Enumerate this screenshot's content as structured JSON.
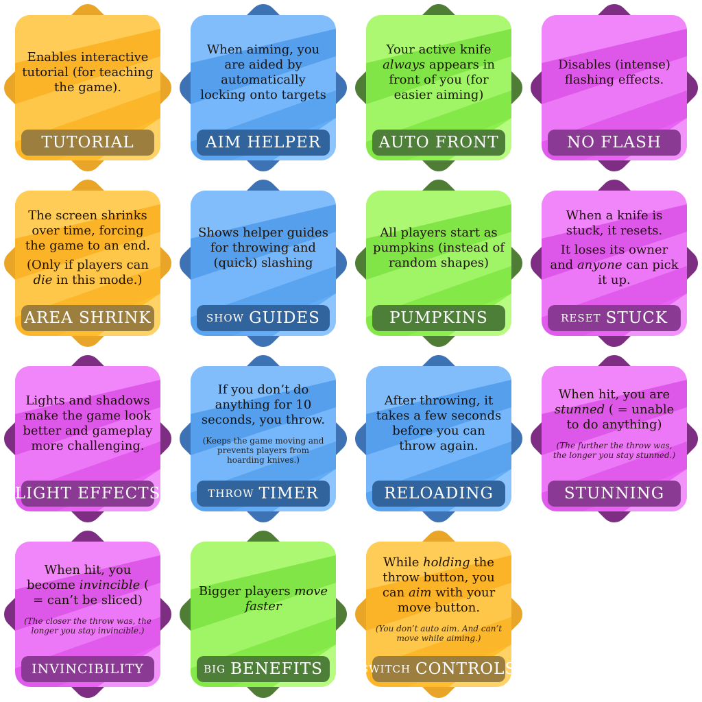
{
  "colors": {
    "orange": {
      "face": "#ffbd2e",
      "light": "#ffd97a",
      "dark": "#f3a21a",
      "diamond": "#e9a528",
      "label": "#9c7e3e"
    },
    "blue": {
      "face": "#62acf7",
      "light": "#9bccff",
      "dark": "#3f86d8",
      "diamond": "#3d72b4",
      "label": "#31649d"
    },
    "green": {
      "face": "#8ef04f",
      "light": "#c4ff92",
      "dark": "#6cd138",
      "diamond": "#4f7d36",
      "label": "#4d7f38"
    },
    "purple": {
      "face": "#e862f3",
      "light": "#f5a4ff",
      "dark": "#c947d7",
      "diamond": "#7d2e83",
      "label": "#8b3a93"
    }
  },
  "cards": [
    {
      "id": "tutorial",
      "color": "orange",
      "prefix": "",
      "title": "Tutorial",
      "paragraphs": [
        [
          {
            "t": "Enables interactive tutorial (for teaching the game)."
          }
        ]
      ],
      "note": ""
    },
    {
      "id": "aim-helper",
      "color": "blue",
      "prefix": "",
      "title": "Aim Helper",
      "paragraphs": [
        [
          {
            "t": "When aiming, you are aided by automatically locking onto targets"
          }
        ]
      ],
      "note": ""
    },
    {
      "id": "auto-front",
      "color": "green",
      "prefix": "",
      "title": "Auto Front",
      "paragraphs": [
        [
          {
            "t": "Your active knife "
          },
          {
            "t": "always",
            "i": true
          },
          {
            "t": " appears in front of you (for easier aiming)"
          }
        ]
      ],
      "note": ""
    },
    {
      "id": "no-flash",
      "color": "purple",
      "prefix": "",
      "title": "No Flash",
      "paragraphs": [
        [
          {
            "t": "Disables (intense) flashing effects."
          }
        ]
      ],
      "note": ""
    },
    {
      "id": "area-shrink",
      "color": "orange",
      "prefix": "",
      "title": "Area Shrink",
      "paragraphs": [
        [
          {
            "t": "The screen shrinks over time, forcing the game to an end."
          }
        ],
        [
          {
            "t": "(Only if players can "
          },
          {
            "t": "die",
            "i": true
          },
          {
            "t": " in this mode.)"
          }
        ]
      ],
      "note": ""
    },
    {
      "id": "show-guides",
      "color": "blue",
      "prefix": "show",
      "title": "Guides",
      "paragraphs": [
        [
          {
            "t": "Shows helper guides for throwing and (quick) slashing"
          }
        ]
      ],
      "note": ""
    },
    {
      "id": "pumpkins",
      "color": "green",
      "prefix": "",
      "title": "Pumpkins",
      "paragraphs": [
        [
          {
            "t": "All players start as pumpkins (instead of random shapes)"
          }
        ]
      ],
      "note": ""
    },
    {
      "id": "reset-stuck",
      "color": "purple",
      "prefix": "reset",
      "title": "Stuck",
      "paragraphs": [
        [
          {
            "t": "When a knife is stuck, it resets."
          }
        ],
        [
          {
            "t": "It loses its owner and "
          },
          {
            "t": "anyone",
            "i": true
          },
          {
            "t": " can pick it up."
          }
        ]
      ],
      "note": ""
    },
    {
      "id": "light-effects",
      "color": "purple",
      "prefix": "",
      "title": "Light Effects",
      "paragraphs": [
        [
          {
            "t": "Lights and shadows make the game look better and gameplay more challenging."
          }
        ]
      ],
      "note": ""
    },
    {
      "id": "throw-timer",
      "color": "blue",
      "prefix": "throw",
      "title": "Timer",
      "paragraphs": [
        [
          {
            "t": "If you don’t do anything for 10 seconds, you throw."
          }
        ]
      ],
      "note": "(Keeps the game moving and prevents players from hoarding knives.)",
      "note_italic": false
    },
    {
      "id": "reloading",
      "color": "blue",
      "prefix": "",
      "title": "Reloading",
      "paragraphs": [
        [
          {
            "t": "After throwing, it takes a few seconds before you can throw again."
          }
        ]
      ],
      "note": ""
    },
    {
      "id": "stunning",
      "color": "purple",
      "prefix": "",
      "title": "Stunning",
      "paragraphs": [
        [
          {
            "t": "When hit, you are "
          },
          {
            "t": "stunned",
            "i": true
          },
          {
            "t": " ( = unable to do anything)"
          }
        ]
      ],
      "note": "(The further the throw was, the longer you stay stunned.)",
      "note_italic": true
    },
    {
      "id": "invincibility",
      "color": "purple",
      "prefix": "",
      "title": "Invincibility",
      "small": true,
      "paragraphs": [
        [
          {
            "t": "When hit, you become "
          },
          {
            "t": "invincible",
            "i": true
          },
          {
            "t": " ( = can’t be sliced)"
          }
        ]
      ],
      "note": "(The closer the throw was, the longer you stay invincible.)",
      "note_italic": true
    },
    {
      "id": "big-benefits",
      "color": "green",
      "prefix": "big",
      "title": "Benefits",
      "paragraphs": [
        [
          {
            "t": "Bigger players "
          },
          {
            "t": "move faster",
            "i": true
          }
        ]
      ],
      "note": ""
    },
    {
      "id": "switch-controls",
      "color": "orange",
      "prefix": "switch",
      "title": "Controls",
      "paragraphs": [
        [
          {
            "t": "While "
          },
          {
            "t": "holding",
            "i": true
          },
          {
            "t": " the throw button, you can "
          },
          {
            "t": "aim",
            "i": true
          },
          {
            "t": " with your move button."
          }
        ]
      ],
      "note": "(You don’t auto aim. And can’t move while aiming.)",
      "note_italic": true
    }
  ]
}
